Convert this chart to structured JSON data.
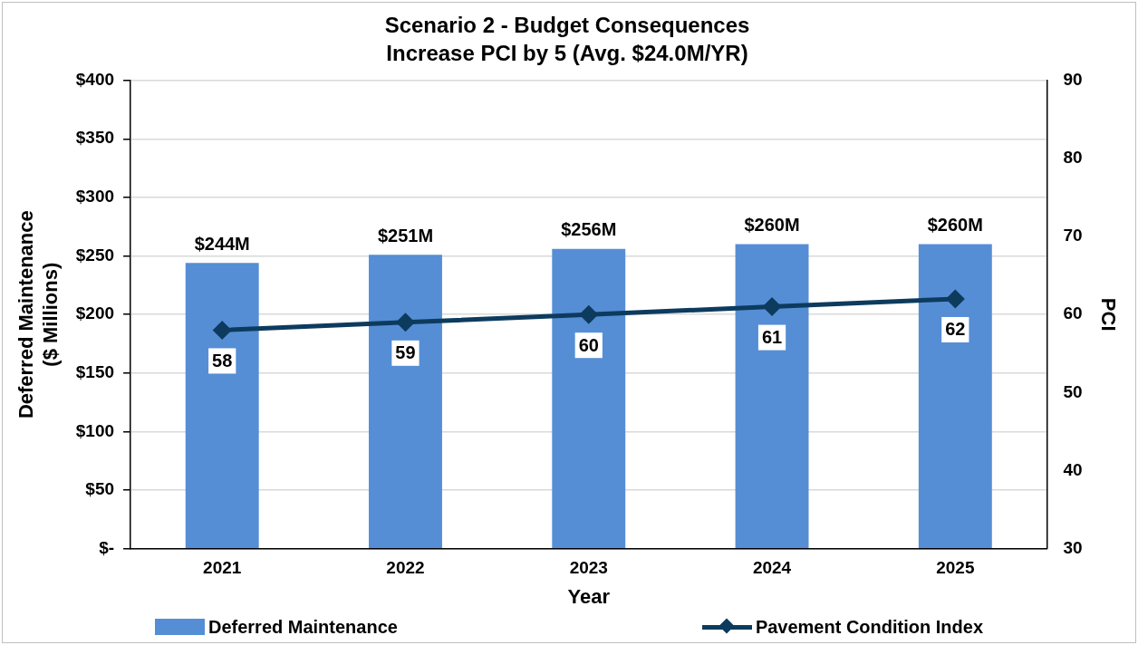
{
  "chart_data": {
    "type": "bar",
    "title": "Scenario 2 - Budget Consequences",
    "subtitle": "Increase PCI by 5 (Avg. $24.0M/YR)",
    "xlabel": "Year",
    "ylabel": "Deferred Maintenance\n($ Millions)",
    "y2label": "PCI",
    "categories": [
      "2021",
      "2022",
      "2023",
      "2024",
      "2025"
    ],
    "series": [
      {
        "name": "Deferred Maintenance",
        "color": "#558ed5",
        "values": [
          244,
          251,
          256,
          260,
          260
        ],
        "value_labels": [
          "$244M",
          "$251M",
          "$256M",
          "$260M",
          "$260M"
        ]
      },
      {
        "name": "Pavement Condition Index",
        "type": "line",
        "axis": "y2",
        "color": "#0d3b5e",
        "values": [
          58,
          59,
          60,
          61,
          62
        ],
        "value_labels": [
          "58",
          "59",
          "60",
          "61",
          "62"
        ],
        "marker": "diamond",
        "line_style": "solid"
      }
    ],
    "ylim": [
      0,
      400
    ],
    "yticks": [
      {
        "value": 0,
        "label": "$-"
      },
      {
        "value": 50,
        "label": "$50"
      },
      {
        "value": 100,
        "label": "$100"
      },
      {
        "value": 150,
        "label": "$150"
      },
      {
        "value": 200,
        "label": "$200"
      },
      {
        "value": 250,
        "label": "$250"
      },
      {
        "value": 300,
        "label": "$300"
      },
      {
        "value": 350,
        "label": "$350"
      },
      {
        "value": 400,
        "label": "$400"
      }
    ],
    "y2lim": [
      30,
      90
    ],
    "y2ticks": [
      30,
      40,
      50,
      60,
      70,
      80,
      90
    ],
    "grid": "y",
    "legend": "bottom"
  }
}
